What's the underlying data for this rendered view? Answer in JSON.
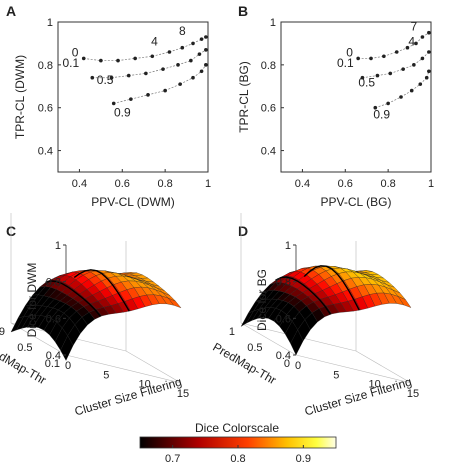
{
  "panels": [
    {
      "id": "A",
      "letter": "A",
      "type": "scatter-grid",
      "xlabel": "PPV-CL (DWM)",
      "ylabel": "TPR-CL (DWM)",
      "xlim": [
        0.3,
        1
      ],
      "ylim": [
        0.3,
        1
      ],
      "xticks": [
        0.4,
        0.6,
        0.8,
        1
      ],
      "yticks": [
        0.4,
        0.6,
        0.8,
        1
      ],
      "xticklabels": [
        "0.4",
        "0.6",
        "0.8",
        "1"
      ],
      "yticklabels": [
        "0.4",
        "0.6",
        "0.8",
        "1"
      ],
      "annotations": [
        {
          "text": "0",
          "x": 0.38,
          "y": 0.84
        },
        {
          "text": "0.1",
          "x": 0.36,
          "y": 0.79
        },
        {
          "text": "4",
          "x": 0.75,
          "y": 0.89
        },
        {
          "text": "8",
          "x": 0.88,
          "y": 0.94
        },
        {
          "text": "0.5",
          "x": 0.52,
          "y": 0.71
        },
        {
          "text": "0.9",
          "x": 0.6,
          "y": 0.56
        }
      ],
      "start": {
        "x": 0.42,
        "y": 0.83
      },
      "end": {
        "x": 0.99,
        "y": 0.78
      }
    },
    {
      "id": "B",
      "letter": "B",
      "type": "scatter-grid",
      "xlabel": "PPV-CL (BG)",
      "ylabel": "TPR-CL (BG)",
      "xlim": [
        0.3,
        1
      ],
      "ylim": [
        0.3,
        1
      ],
      "xticks": [
        0.4,
        0.6,
        0.8,
        1
      ],
      "yticks": [
        0.4,
        0.6,
        0.8,
        1
      ],
      "xticklabels": [
        "0.4",
        "0.6",
        "0.8",
        "1"
      ],
      "yticklabels": [
        "0.4",
        "0.6",
        "0.8",
        "1"
      ],
      "annotations": [
        {
          "text": "7",
          "x": 0.92,
          "y": 0.96
        },
        {
          "text": "4",
          "x": 0.91,
          "y": 0.89
        },
        {
          "text": "0",
          "x": 0.62,
          "y": 0.84
        },
        {
          "text": "0.1",
          "x": 0.6,
          "y": 0.79
        },
        {
          "text": "0.5",
          "x": 0.7,
          "y": 0.7
        },
        {
          "text": "0.9",
          "x": 0.77,
          "y": 0.55
        }
      ],
      "start": {
        "x": 0.66,
        "y": 0.83
      },
      "end": {
        "x": 0.99,
        "y": 0.73
      }
    },
    {
      "id": "C",
      "letter": "C",
      "type": "surface3d",
      "zlabel": "Dice for DWM",
      "ylabel": "PredMap-Thr",
      "xlabel": "Cluster Size Filtering",
      "zticklabels": [
        "0.4",
        "0.6",
        "0.8",
        "1"
      ],
      "yticklabels": [
        "0.1",
        "0.5",
        "0.9"
      ],
      "xticklabels": [
        "0",
        "5",
        "10",
        "15"
      ],
      "zmin": 0.4,
      "zmax": 1.0,
      "surface": {
        "base": 0.45,
        "rise": 0.45,
        "thr_drop": 0.08
      }
    },
    {
      "id": "D",
      "letter": "D",
      "type": "surface3d",
      "zlabel": "Dice for BG",
      "ylabel": "PredMap-Thr",
      "xlabel": "Cluster Size Filtering",
      "zticklabels": [
        "0.4",
        "0.6",
        "0.8",
        "1"
      ],
      "yticklabels": [
        "0",
        "0.5",
        "1"
      ],
      "xticklabels": [
        "0",
        "5",
        "10",
        "15"
      ],
      "zmin": 0.4,
      "zmax": 1.0,
      "surface": {
        "base": 0.5,
        "rise": 0.42,
        "thr_drop": 0.1
      }
    }
  ],
  "colorbar": {
    "title": "Dice Colorscale",
    "ticklabels": [
      "0.7",
      "0.8",
      "0.9"
    ],
    "ticks": [
      0.7,
      0.8,
      0.9
    ],
    "range": [
      0.65,
      0.95
    ],
    "colormap": "hot"
  },
  "chart_data": [
    {
      "type": "scatter",
      "title": "",
      "xlabel": "PPV-CL (DWM)",
      "ylabel": "TPR-CL (DWM)",
      "xlim": [
        0.3,
        1
      ],
      "ylim": [
        0.3,
        1
      ],
      "series": [
        {
          "values": [
            [
              0.42,
              0.83
            ],
            [
              0.5,
              0.82
            ],
            [
              0.58,
              0.82
            ],
            [
              0.66,
              0.83
            ],
            [
              0.74,
              0.84
            ],
            [
              0.82,
              0.86
            ],
            [
              0.88,
              0.88
            ],
            [
              0.93,
              0.9
            ],
            [
              0.97,
              0.92
            ],
            [
              0.99,
              0.93
            ],
            [
              0.46,
              0.74
            ],
            [
              0.55,
              0.74
            ],
            [
              0.63,
              0.75
            ],
            [
              0.71,
              0.76
            ],
            [
              0.79,
              0.78
            ],
            [
              0.86,
              0.8
            ],
            [
              0.92,
              0.82
            ],
            [
              0.96,
              0.85
            ],
            [
              0.99,
              0.87
            ],
            [
              0.56,
              0.62
            ],
            [
              0.64,
              0.64
            ],
            [
              0.72,
              0.66
            ],
            [
              0.8,
              0.68
            ],
            [
              0.87,
              0.71
            ],
            [
              0.93,
              0.74
            ],
            [
              0.97,
              0.77
            ],
            [
              0.99,
              0.8
            ]
          ]
        }
      ]
    },
    {
      "type": "scatter",
      "title": "",
      "xlabel": "PPV-CL (BG)",
      "ylabel": "TPR-CL (BG)",
      "xlim": [
        0.3,
        1
      ],
      "ylim": [
        0.3,
        1
      ],
      "series": [
        {
          "values": [
            [
              0.66,
              0.83
            ],
            [
              0.72,
              0.83
            ],
            [
              0.78,
              0.84
            ],
            [
              0.84,
              0.86
            ],
            [
              0.89,
              0.88
            ],
            [
              0.93,
              0.9
            ],
            [
              0.96,
              0.93
            ],
            [
              0.99,
              0.95
            ],
            [
              0.68,
              0.74
            ],
            [
              0.75,
              0.75
            ],
            [
              0.81,
              0.76
            ],
            [
              0.87,
              0.78
            ],
            [
              0.92,
              0.8
            ],
            [
              0.96,
              0.83
            ],
            [
              0.99,
              0.86
            ],
            [
              0.74,
              0.6
            ],
            [
              0.8,
              0.62
            ],
            [
              0.86,
              0.65
            ],
            [
              0.91,
              0.68
            ],
            [
              0.95,
              0.71
            ],
            [
              0.98,
              0.74
            ],
            [
              0.99,
              0.77
            ]
          ]
        }
      ]
    },
    {
      "type": "heatmap",
      "title": "",
      "xlabel": "Cluster Size Filtering",
      "ylabel": "PredMap-Thr",
      "zlabel": "Dice for DWM",
      "x": [
        0,
        5,
        10,
        15
      ],
      "y": [
        0.1,
        0.5,
        0.9
      ],
      "zlim": [
        0.4,
        1.0
      ]
    },
    {
      "type": "heatmap",
      "title": "",
      "xlabel": "Cluster Size Filtering",
      "ylabel": "PredMap-Thr",
      "zlabel": "Dice for BG",
      "x": [
        0,
        5,
        10,
        15
      ],
      "y": [
        0,
        0.5,
        1
      ],
      "zlim": [
        0.4,
        1.0
      ]
    }
  ]
}
